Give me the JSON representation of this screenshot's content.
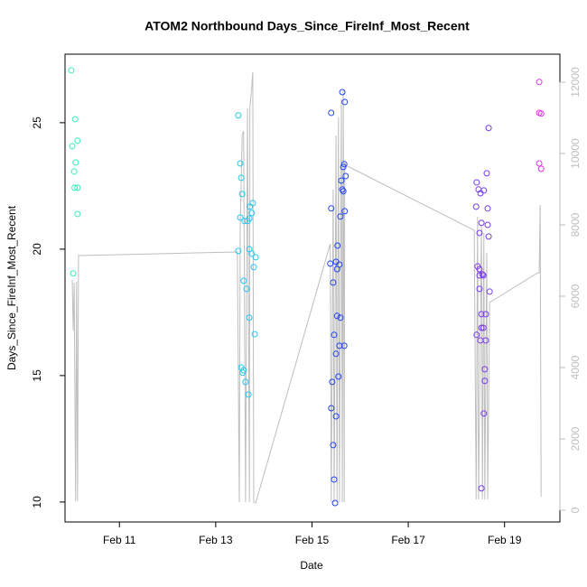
{
  "chart_data": {
    "type": "scatter",
    "title": "ATOM2 Northbound Days_Since_FireInf_Most_Recent",
    "x_label": "Date",
    "y_label": "Days_Since_FireInf_Most_Recent",
    "xlim": [
      9.87,
      20.15
    ],
    "ylim": [
      9.21,
      27.71
    ],
    "y2lim": [
      -329,
      12785
    ],
    "xticks": [
      {
        "value": 11,
        "label": "Feb 11"
      },
      {
        "value": 13,
        "label": "Feb 13"
      },
      {
        "value": 15,
        "label": "Feb 15"
      },
      {
        "value": 17,
        "label": "Feb 17"
      },
      {
        "value": 19,
        "label": "Feb 19"
      }
    ],
    "yticks": [
      10,
      15,
      20,
      25
    ],
    "y2ticks": [
      0,
      2000,
      4000,
      6000,
      8000,
      10000,
      12000
    ],
    "y2_color": "#bebebe",
    "series": [
      {
        "color": "#33EEBB",
        "x": [
          10.0,
          10.08,
          10.02,
          10.13,
          10.06,
          10.09,
          10.07,
          10.13,
          10.13,
          10.04
        ],
        "values": [
          27.07,
          25.14,
          24.07,
          24.29,
          23.07,
          23.43,
          22.43,
          22.43,
          21.39,
          19.04
        ]
      },
      {
        "color": "#22C8EE",
        "x": [
          13.47,
          13.51,
          13.53,
          13.55,
          13.51,
          13.6,
          13.66,
          13.7,
          13.75,
          13.77,
          13.71,
          13.7,
          13.47,
          13.75,
          13.83,
          13.79,
          13.58,
          13.64,
          13.7,
          13.81,
          13.53,
          13.58,
          13.56,
          13.62,
          13.68
        ],
        "values": [
          25.29,
          23.39,
          22.82,
          22.18,
          21.25,
          21.11,
          21.11,
          21.21,
          21.43,
          21.82,
          21.68,
          20.0,
          19.93,
          19.82,
          19.68,
          19.29,
          18.75,
          18.43,
          17.29,
          16.64,
          15.32,
          15.21,
          15.11,
          14.75,
          14.25
        ]
      },
      {
        "color": "#2244EE",
        "x": [
          15.63,
          15.4,
          15.68,
          15.67,
          15.65,
          15.7,
          15.61,
          15.63,
          15.65,
          15.4,
          15.68,
          15.59,
          15.53,
          15.38,
          15.5,
          15.52,
          15.57,
          15.44,
          15.52,
          15.59,
          15.46,
          15.57,
          15.67,
          15.5,
          15.55,
          15.42,
          15.4,
          15.5,
          15.44,
          15.46,
          15.48
        ],
        "values": [
          26.21,
          25.39,
          25.82,
          23.36,
          23.25,
          22.89,
          22.71,
          22.36,
          22.29,
          21.61,
          21.5,
          21.29,
          20.14,
          19.43,
          19.5,
          19.21,
          19.39,
          18.68,
          17.36,
          17.29,
          16.61,
          16.18,
          16.18,
          15.86,
          14.96,
          14.75,
          13.71,
          13.39,
          12.25,
          10.89,
          9.96
        ]
      },
      {
        "color": "#7A3AEE",
        "x": [
          18.67,
          18.63,
          18.42,
          18.46,
          18.57,
          18.5,
          18.41,
          18.65,
          18.52,
          18.65,
          18.48,
          18.67,
          18.44,
          18.48,
          18.54,
          18.48,
          18.56,
          18.48,
          18.69,
          18.52,
          18.61,
          18.52,
          18.56,
          18.42,
          18.5,
          18.61,
          18.59,
          18.59,
          18.57,
          18.52
        ],
        "values": [
          24.79,
          23.0,
          22.64,
          22.36,
          22.32,
          22.21,
          21.68,
          21.61,
          21.04,
          20.96,
          20.64,
          20.5,
          19.32,
          19.21,
          19.0,
          18.96,
          18.96,
          18.43,
          18.32,
          17.43,
          17.43,
          16.89,
          16.89,
          16.61,
          16.39,
          16.39,
          15.25,
          14.79,
          13.5,
          10.54
        ]
      },
      {
        "color": "#E033EE",
        "x": [
          19.72,
          19.72,
          19.76,
          19.72,
          19.76
        ],
        "values": [
          26.61,
          25.39,
          25.36,
          23.39,
          23.18
        ]
      },
      {
        "type": "line",
        "axis": "y2",
        "color": "#bebebe",
        "x": [
          10.02,
          10.04,
          10.06,
          10.09,
          10.11,
          10.13,
          10.15,
          13.45,
          13.49,
          13.51,
          13.55,
          13.58,
          13.62,
          13.66,
          13.7,
          13.71,
          13.75,
          13.77,
          13.79,
          13.83,
          15.38,
          15.4,
          15.44,
          15.46,
          15.5,
          15.52,
          15.55,
          15.57,
          15.61,
          15.63,
          15.65,
          15.67,
          15.68,
          15.7,
          18.37,
          18.41,
          18.44,
          18.46,
          18.52,
          18.54,
          18.57,
          18.59,
          18.63,
          18.65,
          18.69,
          19.66,
          19.72,
          19.74,
          19.76
        ],
        "values": [
          6456,
          5038,
          6380,
          253,
          6405,
          253,
          7139,
          7241,
          228,
          7975,
          10506,
          10633,
          228,
          11266,
          228,
          11266,
          11899,
          12278,
          228,
          203,
          7468,
          228,
          8987,
          228,
          10506,
          228,
          11013,
          228,
          11519,
          228,
          11772,
          228,
          9747,
          9671,
          7848,
          304,
          8228,
          304,
          7975,
          304,
          7772,
          304,
          7215,
          304,
          5823,
          6633,
          6658,
          8557,
          380
        ]
      }
    ]
  }
}
